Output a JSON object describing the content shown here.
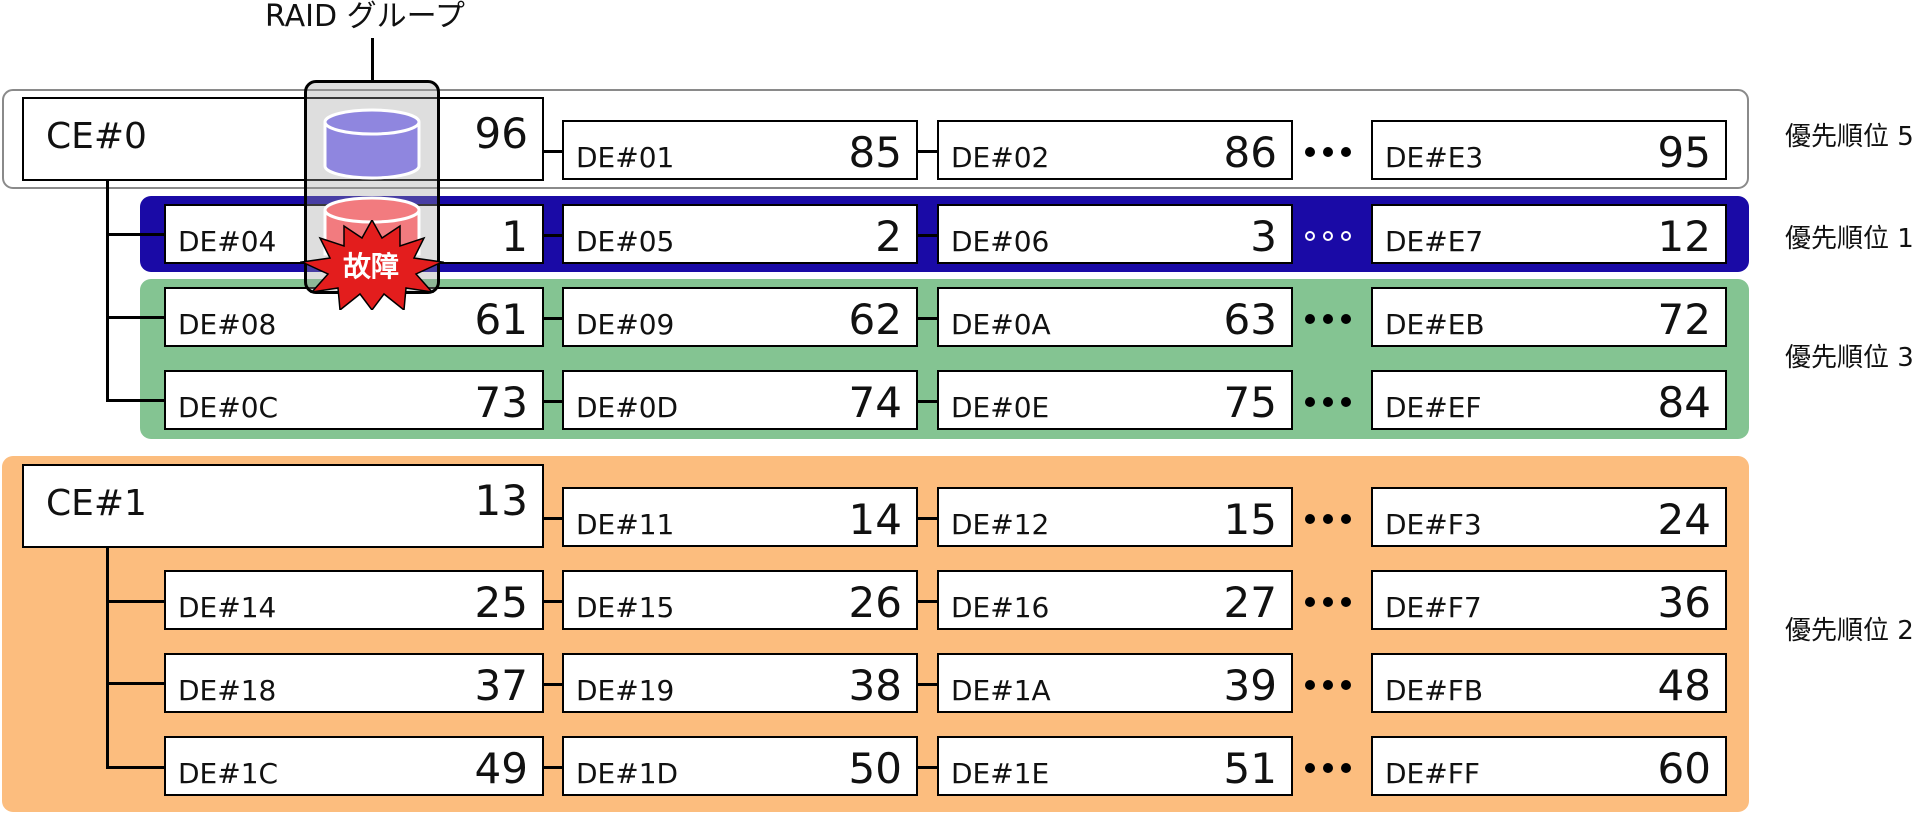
{
  "raid_group_label": "RAID グループ",
  "fault_label": "故障",
  "colors": {
    "priority5_border": "#8a8a8a",
    "priority1_band": "#1a0aa6",
    "priority3_band": "#84c492",
    "priority2_band": "#fcbd7e",
    "disk_ok": "#8f86df",
    "disk_fault": "#f27b7f",
    "fault_burst": "#e31d1d"
  },
  "groups": [
    {
      "id": "ce0",
      "ce": {
        "label": "CE#0",
        "value": "96"
      },
      "ce_row": [
        {
          "label": "DE#01",
          "value": "85"
        },
        {
          "label": "DE#02",
          "value": "86"
        },
        {
          "label": "DE#E3",
          "value": "95"
        }
      ],
      "ce_row_priority": "優先順位 5",
      "rows": [
        {
          "priority": "優先順位 1",
          "cells": [
            {
              "label": "DE#04",
              "value": "1"
            },
            {
              "label": "DE#05",
              "value": "2"
            },
            {
              "label": "DE#06",
              "value": "3"
            },
            {
              "label": "DE#E7",
              "value": "12"
            }
          ]
        },
        {
          "priority": "",
          "cells": [
            {
              "label": "DE#08",
              "value": "61"
            },
            {
              "label": "DE#09",
              "value": "62"
            },
            {
              "label": "DE#0A",
              "value": "63"
            },
            {
              "label": "DE#EB",
              "value": "72"
            }
          ]
        },
        {
          "priority": "",
          "cells": [
            {
              "label": "DE#0C",
              "value": "73"
            },
            {
              "label": "DE#0D",
              "value": "74"
            },
            {
              "label": "DE#0E",
              "value": "75"
            },
            {
              "label": "DE#EF",
              "value": "84"
            }
          ]
        }
      ],
      "band_priority": "優先順位 3"
    },
    {
      "id": "ce1",
      "ce": {
        "label": "CE#1",
        "value": "13"
      },
      "ce_row": [
        {
          "label": "DE#11",
          "value": "14"
        },
        {
          "label": "DE#12",
          "value": "15"
        },
        {
          "label": "DE#F3",
          "value": "24"
        }
      ],
      "rows": [
        {
          "cells": [
            {
              "label": "DE#14",
              "value": "25"
            },
            {
              "label": "DE#15",
              "value": "26"
            },
            {
              "label": "DE#16",
              "value": "27"
            },
            {
              "label": "DE#F7",
              "value": "36"
            }
          ]
        },
        {
          "cells": [
            {
              "label": "DE#18",
              "value": "37"
            },
            {
              "label": "DE#19",
              "value": "38"
            },
            {
              "label": "DE#1A",
              "value": "39"
            },
            {
              "label": "DE#FB",
              "value": "48"
            }
          ]
        },
        {
          "cells": [
            {
              "label": "DE#1C",
              "value": "49"
            },
            {
              "label": "DE#1D",
              "value": "50"
            },
            {
              "label": "DE#1E",
              "value": "51"
            },
            {
              "label": "DE#FF",
              "value": "60"
            }
          ]
        }
      ],
      "band_priority": "優先順位 2"
    }
  ]
}
